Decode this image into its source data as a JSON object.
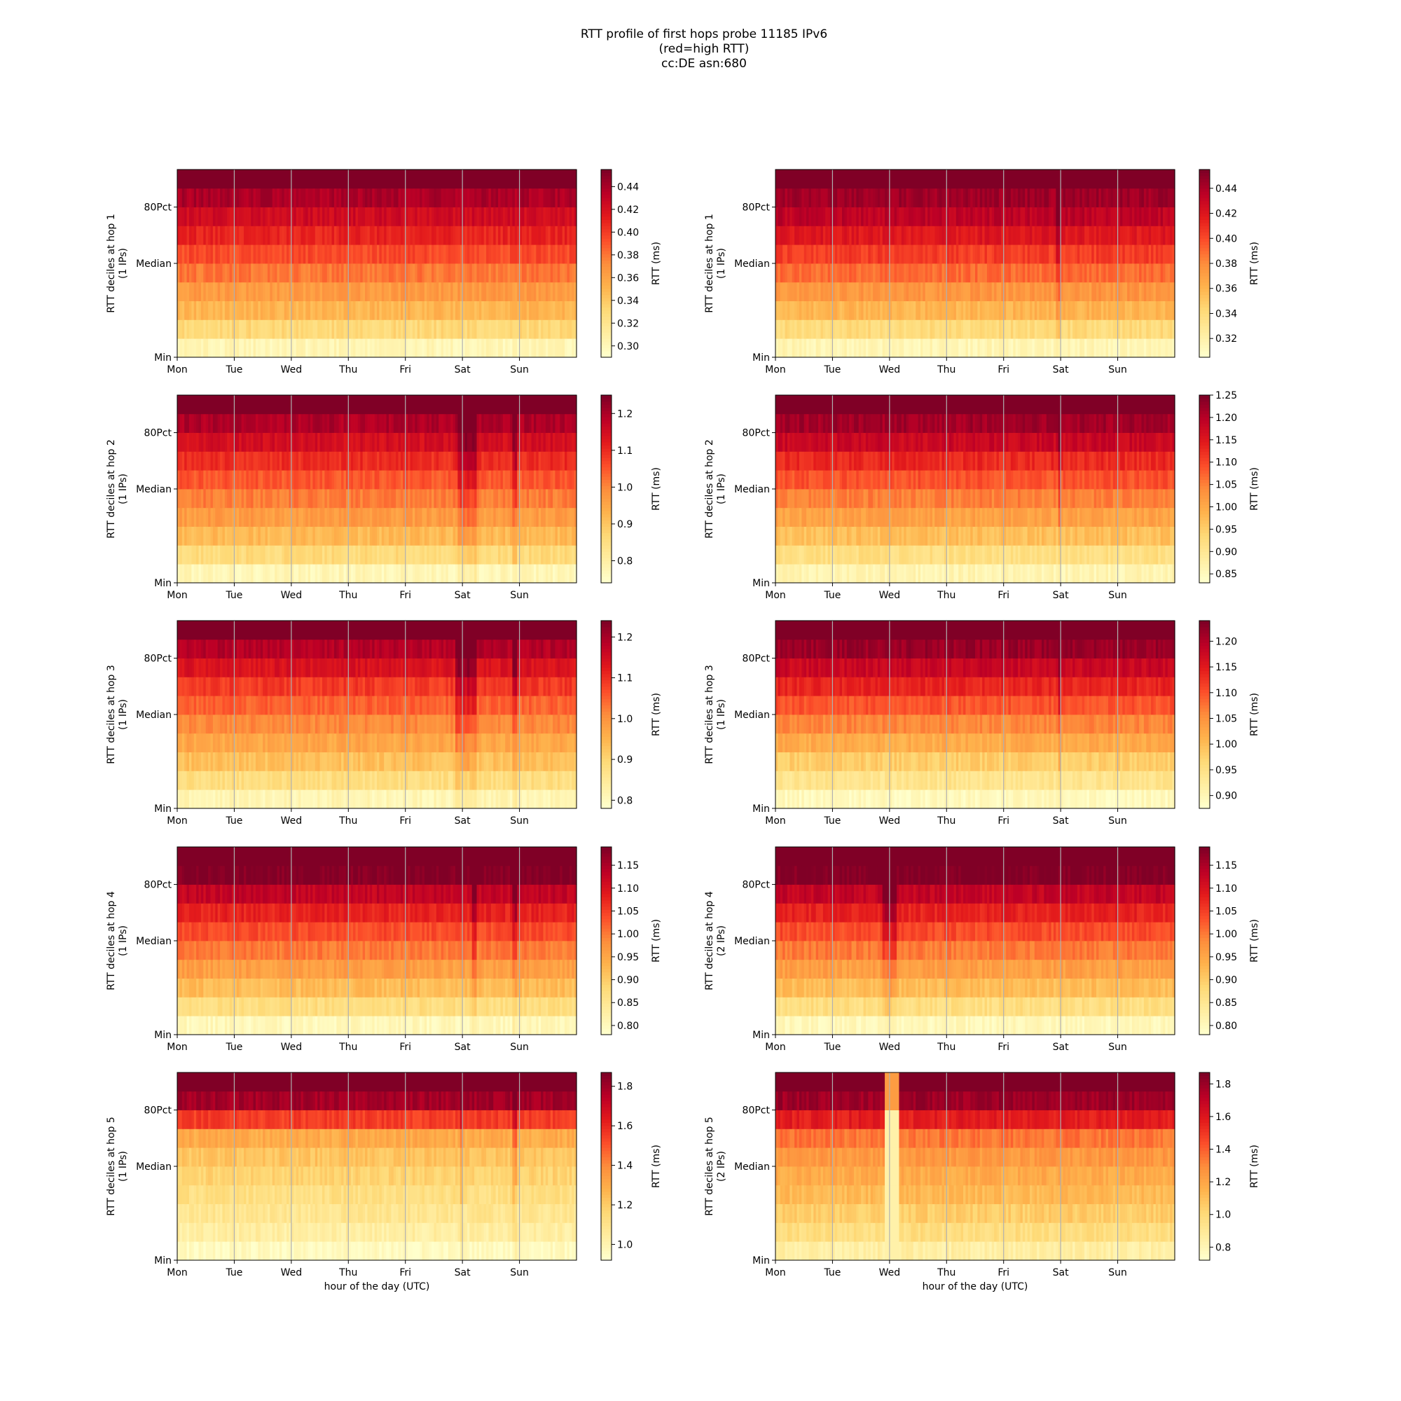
{
  "title_lines": [
    "RTT profile of first hops probe 11185 IPv6",
    "(red=high RTT)",
    "cc:DE asn:680"
  ],
  "days": [
    "Mon",
    "Tue",
    "Wed",
    "Thu",
    "Fri",
    "Sat",
    "Sun"
  ],
  "y_ticks": [
    "Min",
    "Median",
    "80Pct"
  ],
  "xlabel": "hour of the day (UTC)",
  "colorbar_label": "RTT (ms)",
  "colors": {
    "low": "#ffffcc",
    "mid": "#fd8d3c",
    "high": "#800026",
    "grid": "#b0b0b0"
  },
  "chart_data": [
    {
      "type": "heatmap",
      "hop": 1,
      "ylabel": "RTT deciles at hop 1",
      "ips": "(1 IPs)",
      "cbar_ticks": [
        "0.30",
        "0.32",
        "0.34",
        "0.36",
        "0.38",
        "0.40",
        "0.42",
        "0.44"
      ],
      "vmin": 0.29,
      "vmax": 0.455,
      "base_deciles": [
        0.3,
        0.33,
        0.35,
        0.365,
        0.38,
        0.395,
        0.41,
        0.425,
        0.44,
        0.47
      ],
      "dips": []
    },
    {
      "type": "heatmap",
      "hop": 1,
      "ylabel": "RTT deciles at hop 1",
      "ips": "(1 IPs)",
      "cbar_ticks": [
        "0.32",
        "0.34",
        "0.36",
        "0.38",
        "0.40",
        "0.42",
        "0.44"
      ],
      "vmin": 0.305,
      "vmax": 0.455,
      "base_deciles": [
        0.315,
        0.34,
        0.36,
        0.375,
        0.39,
        0.405,
        0.42,
        0.435,
        0.445,
        0.47
      ],
      "dips": [
        [
          4.9,
          5.0
        ]
      ]
    },
    {
      "type": "heatmap",
      "hop": 2,
      "ylabel": "RTT deciles at hop 2",
      "ips": "(1 IPs)",
      "cbar_ticks": [
        "0.8",
        "0.9",
        "1.0",
        "1.1",
        "1.2"
      ],
      "vmin": 0.74,
      "vmax": 1.25,
      "base_deciles": [
        0.77,
        0.86,
        0.92,
        0.97,
        1.01,
        1.05,
        1.1,
        1.15,
        1.2,
        1.3
      ],
      "dips": [
        [
          4.9,
          5.25
        ],
        [
          5.85,
          5.95
        ]
      ]
    },
    {
      "type": "heatmap",
      "hop": 2,
      "ylabel": "RTT deciles at hop 2",
      "ips": "(1 IPs)",
      "cbar_ticks": [
        "0.85",
        "0.90",
        "0.95",
        "1.00",
        "1.05",
        "1.10",
        "1.15",
        "1.20",
        "1.25"
      ],
      "vmin": 0.83,
      "vmax": 1.25,
      "base_deciles": [
        0.86,
        0.92,
        0.97,
        1.01,
        1.05,
        1.09,
        1.13,
        1.18,
        1.22,
        1.3
      ],
      "dips": [
        [
          4.95,
          5.0
        ]
      ]
    },
    {
      "type": "heatmap",
      "hop": 3,
      "ylabel": "RTT deciles at hop 3",
      "ips": "(1 IPs)",
      "cbar_ticks": [
        "0.8",
        "0.9",
        "1.0",
        "1.1",
        "1.2"
      ],
      "vmin": 0.78,
      "vmax": 1.24,
      "base_deciles": [
        0.81,
        0.88,
        0.93,
        0.97,
        1.01,
        1.05,
        1.09,
        1.14,
        1.19,
        1.3
      ],
      "dips": [
        [
          4.85,
          5.25
        ],
        [
          5.85,
          5.95
        ]
      ]
    },
    {
      "type": "heatmap",
      "hop": 3,
      "ylabel": "RTT deciles at hop 3",
      "ips": "(1 IPs)",
      "cbar_ticks": [
        "0.90",
        "0.95",
        "1.00",
        "1.05",
        "1.10",
        "1.15",
        "1.20"
      ],
      "vmin": 0.875,
      "vmax": 1.24,
      "base_deciles": [
        0.89,
        0.94,
        0.98,
        1.02,
        1.06,
        1.1,
        1.14,
        1.18,
        1.22,
        1.3
      ],
      "dips": [
        [
          4.95,
          5.0
        ]
      ]
    },
    {
      "type": "heatmap",
      "hop": 4,
      "ylabel": "RTT deciles at hop 4",
      "ips": "(1 IPs)",
      "cbar_ticks": [
        "0.80",
        "0.85",
        "0.90",
        "0.95",
        "1.00",
        "1.05",
        "1.10",
        "1.15"
      ],
      "vmin": 0.78,
      "vmax": 1.19,
      "base_deciles": [
        0.8,
        0.87,
        0.92,
        0.96,
        1.0,
        1.04,
        1.08,
        1.13,
        1.19,
        1.25
      ],
      "dips": [
        [
          5.15,
          5.25
        ],
        [
          5.85,
          5.95
        ]
      ]
    },
    {
      "type": "heatmap",
      "hop": 4,
      "ylabel": "RTT deciles at hop 4",
      "ips": "(2 IPs)",
      "cbar_ticks": [
        "0.80",
        "0.85",
        "0.90",
        "0.95",
        "1.00",
        "1.05",
        "1.10",
        "1.15"
      ],
      "vmin": 0.78,
      "vmax": 1.19,
      "base_deciles": [
        0.8,
        0.87,
        0.92,
        0.96,
        1.0,
        1.04,
        1.08,
        1.13,
        1.19,
        1.25
      ],
      "dips": [
        [
          1.85,
          2.1
        ]
      ]
    },
    {
      "type": "heatmap",
      "hop": 5,
      "ylabel": "RTT deciles at hop 5",
      "ips": "(1 IPs)",
      "cbar_ticks": [
        "1.0",
        "1.2",
        "1.4",
        "1.6",
        "1.8"
      ],
      "vmin": 0.92,
      "vmax": 1.87,
      "base_deciles": [
        0.95,
        1.03,
        1.08,
        1.12,
        1.17,
        1.22,
        1.3,
        1.55,
        1.8,
        1.95
      ],
      "dips": [
        [
          4.95,
          5.0
        ],
        [
          5.85,
          5.95
        ]
      ]
    },
    {
      "type": "heatmap",
      "hop": 5,
      "ylabel": "RTT deciles at hop 5",
      "ips": "(2 IPs)",
      "cbar_ticks": [
        "0.8",
        "1.0",
        "1.2",
        "1.4",
        "1.6",
        "1.8"
      ],
      "vmin": 0.72,
      "vmax": 1.87,
      "base_deciles": [
        0.85,
        0.97,
        1.05,
        1.12,
        1.18,
        1.25,
        1.35,
        1.58,
        1.8,
        1.95
      ],
      "dips": [],
      "low_band": [
        1.9,
        2.15
      ]
    }
  ]
}
